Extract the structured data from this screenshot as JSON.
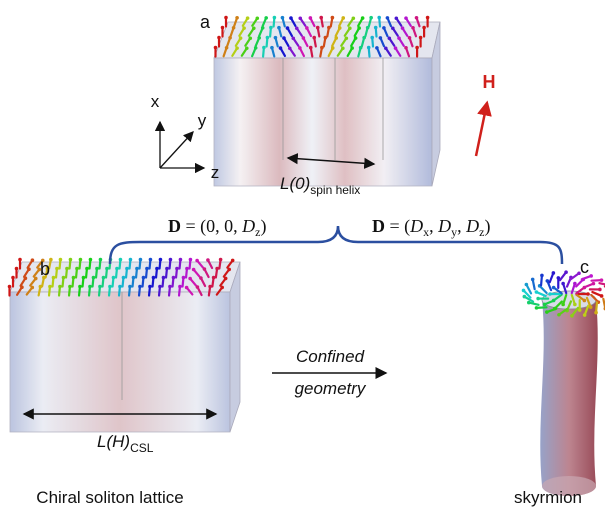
{
  "panels": [
    {
      "label": "a"
    },
    {
      "label": "b"
    },
    {
      "label": "c"
    }
  ],
  "axes": {
    "x": "x",
    "y": "y",
    "z": "z"
  },
  "field": "H",
  "helix_period": {
    "main": "L(0)",
    "sub": "spin helix"
  },
  "csl_period": {
    "main": "L(H)",
    "sub": "CSL"
  },
  "dmi_left": [
    "D",
    " = (0, 0, ",
    "D",
    "z",
    ")"
  ],
  "dmi_right": [
    "D",
    " = (",
    "D",
    "x",
    ", ",
    "D",
    "y",
    ", ",
    "D",
    "z",
    ")"
  ],
  "arrow_label": [
    "Confined",
    "geometry"
  ],
  "captions": {
    "left": "Chiral soliton lattice",
    "right": "skyrmion"
  }
}
